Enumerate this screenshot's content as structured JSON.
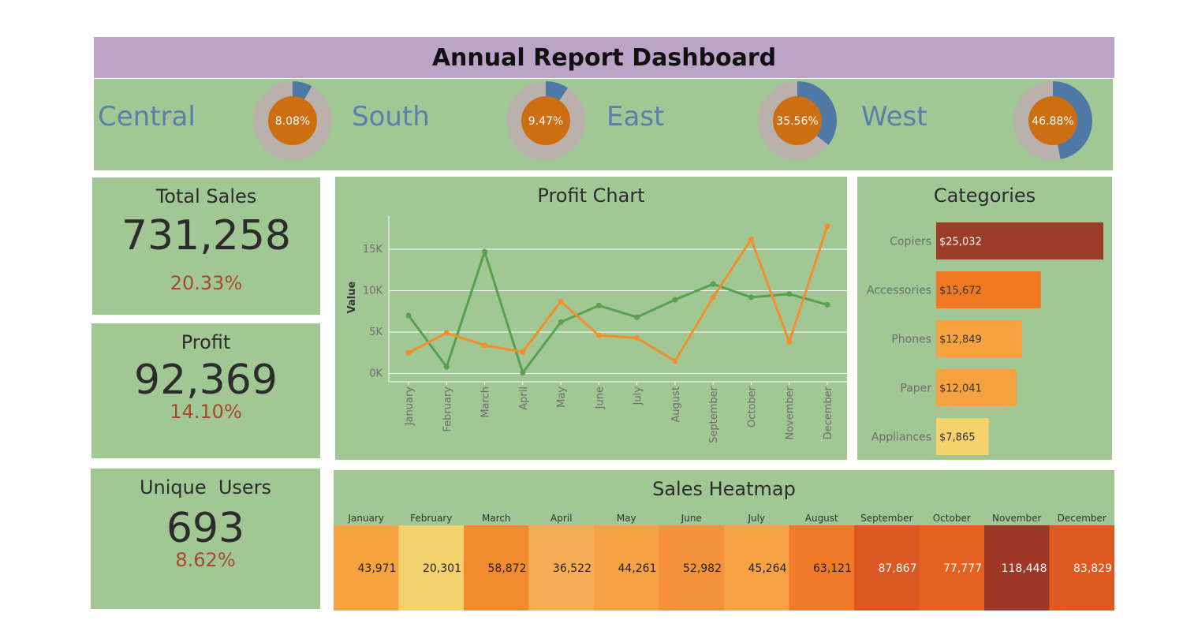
{
  "header": {
    "title": "Annual Report Dashboard"
  },
  "regions": [
    {
      "name": "Central",
      "percent_label": "8.08%",
      "share": 0.0808
    },
    {
      "name": "South",
      "percent_label": "9.47%",
      "share": 0.0947
    },
    {
      "name": "East",
      "percent_label": "35.56%",
      "share": 0.3556
    },
    {
      "name": "West",
      "percent_label": "46.88%",
      "share": 0.4688
    }
  ],
  "kpis": {
    "total_sales": {
      "title": "Total Sales",
      "value": "731,258",
      "pct": "20.33%"
    },
    "profit": {
      "title": "Profit",
      "value": "92,369",
      "pct": "14.10%"
    },
    "unique_users": {
      "title": "Unique  Users",
      "value": "693",
      "pct": "8.62%"
    }
  },
  "colors": {
    "panel": "#a0c794",
    "title_bar": "#bca3c8",
    "donut_ring": "#bab0ac",
    "donut_share": "#4e79a7",
    "donut_center": "#cc6e11",
    "line_green": "#59a14f",
    "line_orange": "#f28e2b"
  },
  "chart_data": [
    {
      "type": "line",
      "title": "Profit Chart",
      "xlabel": "",
      "ylabel": "Value",
      "ylim": [
        -1000,
        19000
      ],
      "yticks": [
        0,
        5000,
        10000,
        15000
      ],
      "ytick_labels": [
        "0K",
        "5K",
        "10K",
        "15K"
      ],
      "grid": true,
      "categories": [
        "January",
        "February",
        "March",
        "April",
        "May",
        "June",
        "July",
        "August",
        "September",
        "October",
        "November",
        "December"
      ],
      "series": [
        {
          "color": "#59a14f",
          "values": [
            7000,
            800,
            14700,
            100,
            6200,
            8200,
            6800,
            8900,
            10800,
            9200,
            9600,
            8300
          ]
        },
        {
          "color": "#f28e2b",
          "values": [
            2500,
            4900,
            3400,
            2600,
            8700,
            4600,
            4300,
            1500,
            9200,
            16200,
            3800,
            17800
          ]
        }
      ]
    },
    {
      "type": "bar",
      "title": "Categories",
      "orientation": "horizontal",
      "categories": [
        "Copiers",
        "Accessories",
        "Phones",
        "Paper",
        "Appliances"
      ],
      "values": [
        25032,
        15672,
        12849,
        12041,
        7865
      ],
      "labels": [
        "$25,032",
        "$15,672",
        "$12,849",
        "$12,041",
        "$7,865"
      ],
      "colors": [
        "#9c3d27",
        "#f07823",
        "#f7a241",
        "#f7a241",
        "#f5d26a"
      ]
    },
    {
      "type": "heatmap",
      "title": "Sales Heatmap",
      "categories": [
        "January",
        "February",
        "March",
        "April",
        "May",
        "June",
        "July",
        "August",
        "September",
        "October",
        "November",
        "December"
      ],
      "values": [
        43971,
        20301,
        58872,
        36522,
        44261,
        52982,
        45264,
        63121,
        87867,
        77777,
        118448,
        83829
      ],
      "labels": [
        "43,971",
        "20,301",
        "58,872",
        "36,522",
        "44,261",
        "52,982",
        "45,264",
        "63,121",
        "87,867",
        "77,777",
        "118,448",
        "83,829"
      ],
      "colors": [
        "#f7a241",
        "#f3d26d",
        "#f28a2f",
        "#f7ad53",
        "#f8a044",
        "#f5913a",
        "#f8a246",
        "#f07a29",
        "#db5723",
        "#e4611f",
        "#9c3825",
        "#de5a22"
      ]
    }
  ]
}
